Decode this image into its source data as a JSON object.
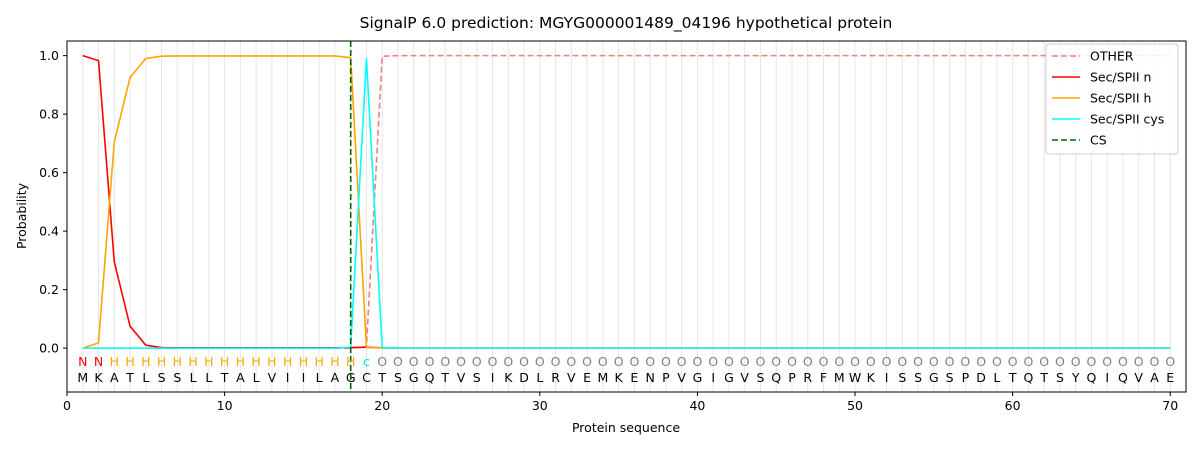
{
  "chart_data": {
    "type": "line",
    "title": "SignalP 6.0 prediction: MGYG000001489_04196 hypothetical protein",
    "xlabel": "Protein sequence",
    "ylabel": "Probability",
    "xlim": [
      0,
      71
    ],
    "ylim": [
      -0.15,
      1.05
    ],
    "xticks": [
      0,
      10,
      20,
      30,
      40,
      50,
      60,
      70
    ],
    "yticks": [
      0.0,
      0.2,
      0.4,
      0.6,
      0.8,
      1.0
    ],
    "ytick_labels": [
      "0.0",
      "0.2",
      "0.4",
      "0.6",
      "0.8",
      "1.0"
    ],
    "grid": "vertical lines at each residue",
    "legend_position": "top-right",
    "sequence": [
      "M",
      "K",
      "A",
      "T",
      "L",
      "S",
      "S",
      "L",
      "L",
      "T",
      "A",
      "L",
      "V",
      "I",
      "I",
      "L",
      "A",
      "G",
      "C",
      "T",
      "S",
      "G",
      "Q",
      "T",
      "V",
      "S",
      "I",
      "K",
      "D",
      "L",
      "R",
      "V",
      "E",
      "M",
      "K",
      "E",
      "N",
      "P",
      "V",
      "G",
      "I",
      "G",
      "V",
      "S",
      "Q",
      "P",
      "R",
      "F",
      "M",
      "W",
      "K",
      "I",
      "S",
      "S",
      "G",
      "S",
      "P",
      "D",
      "L",
      "T",
      "Q",
      "T",
      "S",
      "Y",
      "Q",
      "I",
      "Q",
      "V",
      "A",
      "E"
    ],
    "region_labels": [
      "N",
      "N",
      "H",
      "H",
      "H",
      "H",
      "H",
      "H",
      "H",
      "H",
      "H",
      "H",
      "H",
      "H",
      "H",
      "H",
      "H",
      "H",
      "c",
      "O",
      "O",
      "O",
      "O",
      "O",
      "O",
      "O",
      "O",
      "O",
      "O",
      "O",
      "O",
      "O",
      "O",
      "O",
      "O",
      "O",
      "O",
      "O",
      "O",
      "O",
      "O",
      "O",
      "O",
      "O",
      "O",
      "O",
      "O",
      "O",
      "O",
      "O",
      "O",
      "O",
      "O",
      "O",
      "O",
      "O",
      "O",
      "O",
      "O",
      "O",
      "O",
      "O",
      "O",
      "O",
      "O",
      "O",
      "O",
      "O",
      "O",
      "O"
    ],
    "series": [
      {
        "name": "OTHER",
        "color": "#f08080",
        "dash": "dashed",
        "values": [
          0,
          0,
          0,
          0,
          0,
          0,
          0,
          0,
          0,
          0,
          0,
          0,
          0,
          0,
          0,
          0,
          0,
          0,
          0.005,
          0.998,
          1,
          1,
          1,
          1,
          1,
          1,
          1,
          1,
          1,
          1,
          1,
          1,
          1,
          1,
          1,
          1,
          1,
          1,
          1,
          1,
          1,
          1,
          1,
          1,
          1,
          1,
          1,
          1,
          1,
          1,
          1,
          1,
          1,
          1,
          1,
          1,
          1,
          1,
          1,
          1,
          1,
          1,
          1,
          1,
          1,
          1,
          1,
          1,
          1,
          1
        ]
      },
      {
        "name": "Sec/SPII n",
        "color": "#ff0000",
        "dash": "solid",
        "values": [
          1.0,
          0.983,
          0.295,
          0.075,
          0.01,
          0.002,
          0.001,
          0.001,
          0.001,
          0.001,
          0.001,
          0.001,
          0.001,
          0.001,
          0.001,
          0.001,
          0.001,
          0.002,
          0.003,
          0.001,
          0,
          0,
          0,
          0,
          0,
          0,
          0,
          0,
          0,
          0,
          0,
          0,
          0,
          0,
          0,
          0,
          0,
          0,
          0,
          0,
          0,
          0,
          0,
          0,
          0,
          0,
          0,
          0,
          0,
          0,
          0,
          0,
          0,
          0,
          0,
          0,
          0,
          0,
          0,
          0,
          0,
          0,
          0,
          0,
          0,
          0,
          0,
          0,
          0,
          0
        ]
      },
      {
        "name": "Sec/SPII h",
        "color": "#ffa500",
        "dash": "solid",
        "values": [
          0.0,
          0.018,
          0.705,
          0.925,
          0.99,
          0.998,
          0.999,
          0.999,
          0.999,
          0.999,
          0.999,
          0.999,
          0.999,
          0.999,
          0.999,
          0.999,
          0.999,
          0.993,
          0.002,
          0.001,
          0,
          0,
          0,
          0,
          0,
          0,
          0,
          0,
          0,
          0,
          0,
          0,
          0,
          0,
          0,
          0,
          0,
          0,
          0,
          0,
          0,
          0,
          0,
          0,
          0,
          0,
          0,
          0,
          0,
          0,
          0,
          0,
          0,
          0,
          0,
          0,
          0,
          0,
          0,
          0,
          0,
          0,
          0,
          0,
          0,
          0,
          0,
          0,
          0,
          0
        ]
      },
      {
        "name": "Sec/SPII cys",
        "color": "#00ffff",
        "dash": "solid",
        "values": [
          0,
          0,
          0,
          0,
          0,
          0,
          0,
          0,
          0,
          0,
          0,
          0,
          0,
          0,
          0,
          0,
          0,
          0.003,
          0.99,
          0.002,
          0,
          0,
          0,
          0,
          0,
          0,
          0,
          0,
          0,
          0,
          0,
          0,
          0,
          0,
          0,
          0,
          0,
          0,
          0,
          0,
          0,
          0,
          0,
          0,
          0,
          0,
          0,
          0,
          0,
          0,
          0,
          0,
          0,
          0,
          0,
          0,
          0,
          0,
          0,
          0,
          0,
          0,
          0,
          0,
          0,
          0,
          0,
          0,
          0,
          0
        ]
      },
      {
        "name": "CS",
        "color": "#006400",
        "dash": "dashed",
        "vertical_at": 18
      }
    ]
  }
}
